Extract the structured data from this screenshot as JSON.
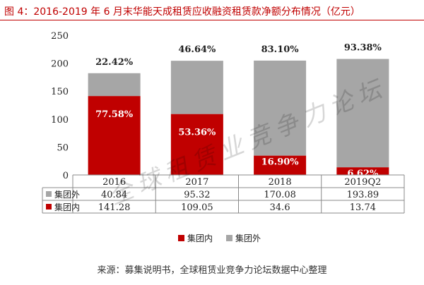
{
  "header": {
    "title": "图 4：2016-2019 年 6 月末华能天成租赁应收融资租赁款净额分布情况（亿元）"
  },
  "footer": {
    "source": "来源：募集说明书，全球租赁业竞争力论坛数据中心整理"
  },
  "watermark": "全球租赁业竞争力论坛",
  "chart_data": {
    "type": "bar",
    "stacked": true,
    "categories": [
      "2016",
      "2017",
      "2018",
      "2019Q2"
    ],
    "series": [
      {
        "name": "集团内",
        "values": [
          141.28,
          109.05,
          34.6,
          13.74
        ],
        "color": "#c00000",
        "share_labels": [
          "77.58%",
          "53.36%",
          "16.90%",
          "6.62%"
        ]
      },
      {
        "name": "集团外",
        "values": [
          40.84,
          95.32,
          170.08,
          193.89
        ],
        "color": "#a6a6a6",
        "share_labels": [
          "22.42%",
          "46.64%",
          "83.10%",
          "93.38%"
        ]
      }
    ],
    "table_rows": [
      {
        "name": "集团外",
        "cells": [
          "40.84",
          "95.32",
          "170.08",
          "193.89"
        ]
      },
      {
        "name": "集团内",
        "cells": [
          "141.28",
          "109.05",
          "34.6",
          "13.74"
        ]
      }
    ],
    "yticks": [
      "0",
      "50",
      "100",
      "150",
      "200",
      "250"
    ],
    "ylim": [
      0,
      250
    ],
    "legend": {
      "position": "bottom",
      "items": [
        "集团内",
        "集团外"
      ]
    },
    "grid": false
  }
}
